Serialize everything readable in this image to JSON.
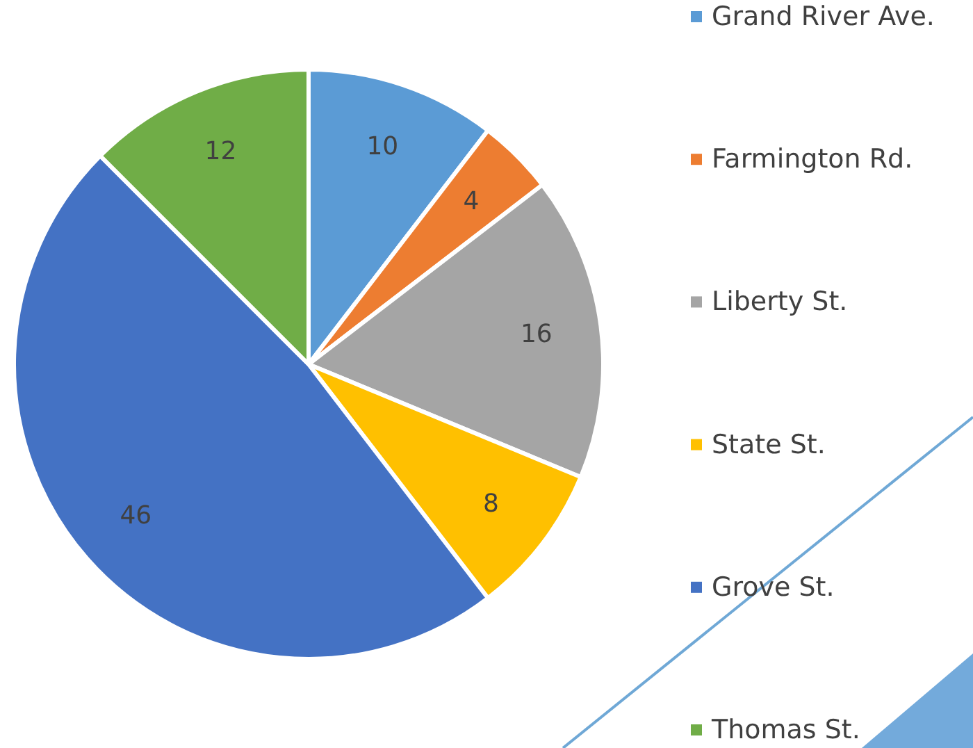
{
  "chart_data": {
    "type": "pie",
    "categories": [
      "Grand River Ave.",
      "Farmington Rd.",
      "Liberty St.",
      "State St.",
      "Grove St.",
      "Thomas St."
    ],
    "values": [
      10,
      4,
      16,
      8,
      46,
      12
    ],
    "colors": [
      "#5b9bd5",
      "#ed7d31",
      "#a5a5a5",
      "#ffc000",
      "#4472c4",
      "#70ad47"
    ],
    "data_labels": true,
    "legend": "right"
  }
}
